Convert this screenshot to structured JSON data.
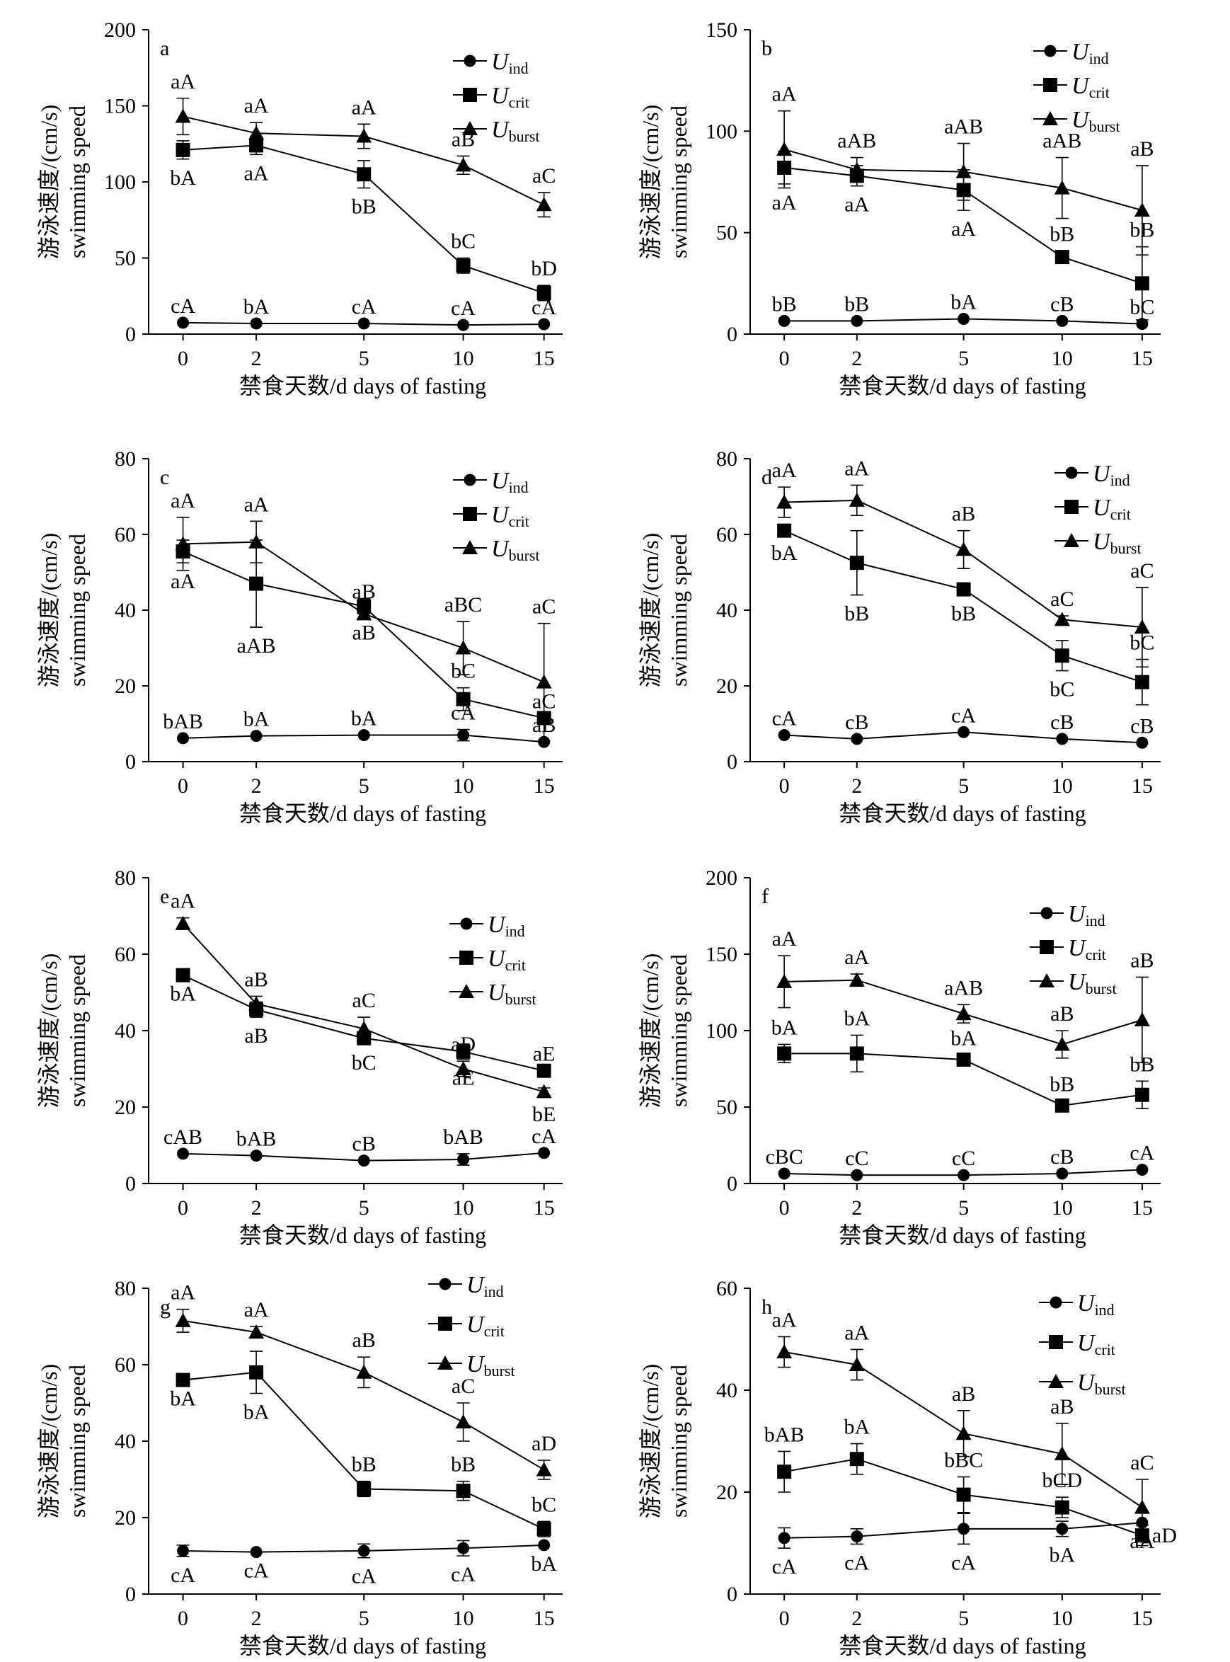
{
  "figure": {
    "ylabel_cn": "游泳速度/(cm/s)",
    "ylabel_en": "swimming speed",
    "xlabel": "禁食天数/d days of fasting"
  },
  "chart_data": [
    {
      "panel": "a",
      "type": "line",
      "x": [
        0,
        2,
        5,
        10,
        15
      ],
      "ylim": [
        0,
        200
      ],
      "yticks": [
        0,
        50,
        100,
        150,
        200
      ],
      "series": [
        {
          "name": "U_ind",
          "marker": "circle",
          "values": [
            7.5,
            7,
            7,
            6,
            6.5
          ],
          "err": [
            0,
            0,
            0,
            0,
            0
          ],
          "labels": [
            "cA",
            "bA",
            "cA",
            "cA",
            "cA"
          ],
          "label_pos": [
            "above",
            "above",
            "above",
            "above",
            "above"
          ]
        },
        {
          "name": "U_crit",
          "marker": "square",
          "values": [
            121,
            124,
            105,
            45,
            27
          ],
          "err": [
            6,
            6,
            9,
            5,
            5
          ],
          "labels": [
            "bA",
            "aA",
            "bB",
            "bC",
            "bD"
          ],
          "label_pos": [
            "below",
            "below",
            "below",
            "above",
            "above"
          ]
        },
        {
          "name": "U_burst",
          "marker": "triangle",
          "values": [
            143,
            132,
            130,
            111,
            85
          ],
          "err": [
            12,
            7,
            8,
            6,
            8
          ],
          "labels": [
            "aA",
            "aA",
            "aA",
            "aB",
            "aC"
          ],
          "label_pos": [
            "above",
            "above",
            "above",
            "above",
            "above"
          ]
        }
      ]
    },
    {
      "panel": "b",
      "type": "line",
      "x": [
        0,
        2,
        5,
        10,
        15
      ],
      "ylim": [
        0,
        150
      ],
      "yticks": [
        0,
        50,
        100,
        150
      ],
      "series": [
        {
          "name": "U_ind",
          "marker": "circle",
          "values": [
            6.5,
            6.5,
            7.5,
            6.5,
            5
          ],
          "err": [
            0,
            0,
            0,
            0,
            0
          ],
          "labels": [
            "bB",
            "bB",
            "bA",
            "cB",
            "bC"
          ],
          "label_pos": [
            "above",
            "above",
            "above",
            "above",
            "above"
          ]
        },
        {
          "name": "U_crit",
          "marker": "square",
          "values": [
            82,
            78,
            71,
            38,
            25
          ],
          "err": [
            8,
            5,
            10,
            3,
            18
          ],
          "labels": [
            "aA",
            "aA",
            "aA",
            "bB",
            "bB"
          ],
          "label_pos": [
            "below",
            "below",
            "below",
            "above",
            "above"
          ]
        },
        {
          "name": "U_burst",
          "marker": "triangle",
          "values": [
            91,
            81,
            80,
            72,
            61
          ],
          "err": [
            19,
            6,
            14,
            15,
            22
          ],
          "labels": [
            "aA",
            "aAB",
            "aAB",
            "aAB",
            "aB"
          ],
          "label_pos": [
            "above",
            "above",
            "above",
            "above",
            "above"
          ]
        }
      ]
    },
    {
      "panel": "c",
      "type": "line",
      "x": [
        0,
        2,
        5,
        10,
        15
      ],
      "ylim": [
        0,
        80
      ],
      "yticks": [
        0,
        20,
        40,
        60,
        80
      ],
      "series": [
        {
          "name": "U_ind",
          "marker": "circle",
          "values": [
            6.2,
            6.8,
            7,
            7,
            5.2
          ],
          "err": [
            0,
            0,
            0,
            1.5,
            0
          ],
          "labels": [
            "bAB",
            "bA",
            "bA",
            "cA",
            "aB"
          ],
          "label_pos": [
            "above",
            "above",
            "above",
            "above",
            "above"
          ]
        },
        {
          "name": "U_crit",
          "marker": "square",
          "values": [
            55.5,
            47,
            41,
            16.5,
            11.5
          ],
          "err": [
            3,
            11.5,
            2,
            3,
            0
          ],
          "labels": [
            "aA",
            "aAB",
            "aB",
            "bC",
            "aC"
          ],
          "label_pos": [
            "below",
            "below",
            "below",
            "above",
            "above"
          ]
        },
        {
          "name": "U_burst",
          "marker": "triangle",
          "values": [
            57.5,
            58,
            39,
            30,
            21
          ],
          "err": [
            7,
            5.5,
            1.5,
            7,
            15.5
          ],
          "labels": [
            "aA",
            "aA",
            "aB",
            "aBC",
            "aC"
          ],
          "label_pos": [
            "above",
            "above",
            "above",
            "above",
            "above"
          ]
        }
      ]
    },
    {
      "panel": "d",
      "type": "line",
      "x": [
        0,
        2,
        5,
        10,
        15
      ],
      "ylim": [
        0,
        80
      ],
      "yticks": [
        0,
        20,
        40,
        60,
        80
      ],
      "series": [
        {
          "name": "U_ind",
          "marker": "circle",
          "values": [
            7,
            6,
            7.8,
            6,
            5
          ],
          "err": [
            0,
            0,
            0,
            0,
            0
          ],
          "labels": [
            "cA",
            "cB",
            "cA",
            "cB",
            "cB"
          ],
          "label_pos": [
            "above",
            "above",
            "above",
            "above",
            "above"
          ]
        },
        {
          "name": "U_crit",
          "marker": "square",
          "values": [
            61,
            52.5,
            45.5,
            28,
            21
          ],
          "err": [
            1,
            8.5,
            1.5,
            4,
            6
          ],
          "labels": [
            "bA",
            "bB",
            "bB",
            "bC",
            "bC"
          ],
          "label_pos": [
            "below",
            "below",
            "below",
            "below",
            "above"
          ]
        },
        {
          "name": "U_burst",
          "marker": "triangle",
          "values": [
            68.5,
            69,
            56,
            37.5,
            35.5
          ],
          "err": [
            4,
            4,
            5,
            1,
            10.5
          ],
          "labels": [
            "aA",
            "aA",
            "aB",
            "aC",
            "aC"
          ],
          "label_pos": [
            "above",
            "above",
            "above",
            "above",
            "above"
          ]
        }
      ]
    },
    {
      "panel": "e",
      "type": "line",
      "x": [
        0,
        2,
        5,
        10,
        15
      ],
      "ylim": [
        0,
        80
      ],
      "yticks": [
        0,
        20,
        40,
        60,
        80
      ],
      "series": [
        {
          "name": "U_ind",
          "marker": "circle",
          "values": [
            7.8,
            7.3,
            6,
            6.3,
            8
          ],
          "err": [
            0,
            0,
            0,
            1.5,
            0
          ],
          "labels": [
            "cAB",
            "bAB",
            "cB",
            "bAB",
            "cA"
          ],
          "label_pos": [
            "above",
            "above",
            "above",
            "above",
            "above"
          ]
        },
        {
          "name": "U_crit",
          "marker": "square",
          "values": [
            54.5,
            45.5,
            38,
            34.5,
            29.5
          ],
          "err": [
            0,
            2,
            1.5,
            2,
            0
          ],
          "labels": [
            "bA",
            "aB",
            "bC",
            "aE",
            "aE"
          ],
          "label_pos": [
            "below",
            "below",
            "below",
            "below",
            "above"
          ]
        },
        {
          "name": "U_burst",
          "marker": "triangle",
          "values": [
            68,
            47,
            40.5,
            30,
            24
          ],
          "err": [
            1.5,
            2,
            3,
            2,
            1
          ],
          "labels": [
            "aA",
            "aB",
            "aC",
            "aD",
            "bE"
          ],
          "label_pos": [
            "above",
            "above",
            "above",
            "above",
            "below"
          ]
        }
      ]
    },
    {
      "panel": "f",
      "type": "line",
      "x": [
        0,
        2,
        5,
        10,
        15
      ],
      "ylim": [
        0,
        200
      ],
      "yticks": [
        0,
        50,
        100,
        150,
        200
      ],
      "series": [
        {
          "name": "U_ind",
          "marker": "circle",
          "values": [
            6.5,
            5.5,
            5.5,
            6.5,
            9
          ],
          "err": [
            0,
            0,
            0,
            0,
            0
          ],
          "labels": [
            "cBC",
            "cC",
            "cC",
            "cB",
            "cA"
          ],
          "label_pos": [
            "above",
            "above",
            "above",
            "above",
            "above"
          ]
        },
        {
          "name": "U_crit",
          "marker": "square",
          "values": [
            85,
            85,
            81,
            51,
            58
          ],
          "err": [
            6,
            12,
            3,
            3,
            9
          ],
          "labels": [
            "bA",
            "bA",
            "bA",
            "bB",
            "bB"
          ],
          "label_pos": [
            "above",
            "above",
            "above",
            "above",
            "above"
          ]
        },
        {
          "name": "U_burst",
          "marker": "triangle",
          "values": [
            132,
            133,
            111,
            91,
            107
          ],
          "err": [
            17,
            4,
            6,
            9,
            28
          ],
          "labels": [
            "aA",
            "aA",
            "aAB",
            "aB",
            "aB"
          ],
          "label_pos": [
            "above",
            "above",
            "above",
            "above",
            "above"
          ]
        }
      ]
    },
    {
      "panel": "g",
      "type": "line",
      "x": [
        0,
        2,
        5,
        10,
        15
      ],
      "ylim": [
        0,
        80
      ],
      "yticks": [
        0,
        20,
        40,
        60,
        80
      ],
      "series": [
        {
          "name": "U_ind",
          "marker": "circle",
          "values": [
            11.3,
            11,
            11.3,
            12,
            12.8
          ],
          "err": [
            1.5,
            0,
            1.8,
            2,
            0
          ],
          "labels": [
            "cA",
            "cA",
            "cA",
            "cA",
            "bA"
          ],
          "label_pos": [
            "below",
            "below",
            "below",
            "below",
            "below"
          ]
        },
        {
          "name": "U_crit",
          "marker": "square",
          "values": [
            56,
            58,
            27.5,
            27,
            17
          ],
          "err": [
            0,
            5.5,
            2,
            2.5,
            2
          ],
          "labels": [
            "bA",
            "bA",
            "bB",
            "bB",
            "bC"
          ],
          "label_pos": [
            "below",
            "below",
            "above",
            "above",
            "above"
          ]
        },
        {
          "name": "U_burst",
          "marker": "triangle",
          "values": [
            71.5,
            68.5,
            58,
            45,
            32.5
          ],
          "err": [
            3,
            1.5,
            4,
            5,
            2.5
          ],
          "labels": [
            "aA",
            "aA",
            "aB",
            "aC",
            "aD"
          ],
          "label_pos": [
            "above",
            "above",
            "above",
            "above",
            "above"
          ]
        }
      ]
    },
    {
      "panel": "h",
      "type": "line",
      "x": [
        0,
        2,
        5,
        10,
        15
      ],
      "ylim": [
        0,
        60
      ],
      "yticks": [
        0,
        20,
        40,
        60
      ],
      "series": [
        {
          "name": "U_ind",
          "marker": "circle",
          "values": [
            11,
            11.3,
            12.8,
            12.8,
            14
          ],
          "err": [
            2,
            1.5,
            3,
            1.5,
            0
          ],
          "labels": [
            "cA",
            "cA",
            "cA",
            "bA",
            "aA"
          ],
          "label_pos": [
            "below",
            "below",
            "below",
            "below",
            "below"
          ]
        },
        {
          "name": "U_crit",
          "marker": "square",
          "values": [
            24,
            26.5,
            19.5,
            17,
            11.5
          ],
          "err": [
            4,
            3,
            3.5,
            2,
            2
          ],
          "labels": [
            "bAB",
            "bA",
            "bBC",
            "bCD",
            "aD"
          ],
          "label_pos": [
            "above",
            "above",
            "above",
            "above",
            "right"
          ]
        },
        {
          "name": "U_burst",
          "marker": "triangle",
          "values": [
            47.5,
            45,
            31.5,
            27.5,
            17
          ],
          "err": [
            3,
            3,
            4.5,
            6,
            5.5
          ],
          "labels": [
            "aA",
            "aA",
            "aB",
            "aB",
            "aC"
          ],
          "label_pos": [
            "above",
            "above",
            "above",
            "above",
            "above"
          ]
        }
      ]
    }
  ],
  "legend": [
    {
      "main": "U",
      "sub": "ind",
      "marker": "circle"
    },
    {
      "main": "U",
      "sub": "crit",
      "marker": "square"
    },
    {
      "main": "U",
      "sub": "burst",
      "marker": "triangle"
    }
  ]
}
